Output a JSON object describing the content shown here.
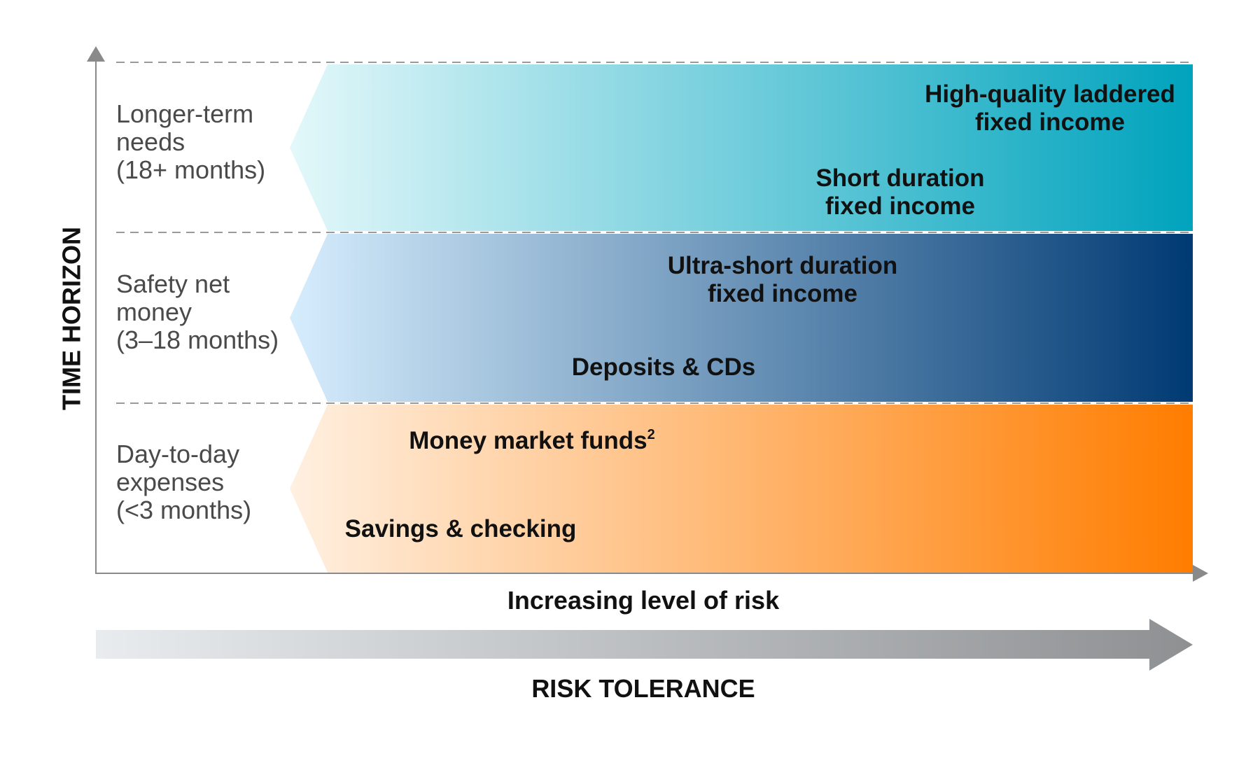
{
  "colors": {
    "top_band_start": "#e3f8fa",
    "top_band_end": "#00a3bd",
    "middle_band_start": "#d6edfd",
    "middle_band_end": "#003a73",
    "bottom_band_start": "#fff0e1",
    "bottom_band_end": "#ff7d00",
    "axis": "#8a8a8a",
    "grid_dash": "#9a9a9a",
    "risk_arrow_start": "#e8ecef",
    "risk_arrow_end": "#8e9092"
  },
  "y_axis": {
    "title": "TIME HORIZON"
  },
  "x_axis": {
    "title": "Increasing level of risk"
  },
  "risk_arrow": {
    "label": "RISK TOLERANCE"
  },
  "rows": [
    {
      "id": "longer-term",
      "label_lines": [
        "Longer-term",
        "needs",
        "(18+ months)"
      ],
      "products": [
        {
          "lines": [
            "High-quality laddered",
            "fixed income"
          ]
        },
        {
          "lines": [
            "Short duration",
            "fixed income"
          ]
        }
      ]
    },
    {
      "id": "safety-net",
      "label_lines": [
        "Safety net",
        "money",
        "(3–18 months)"
      ],
      "products": [
        {
          "lines": [
            "Ultra-short duration",
            "fixed income"
          ]
        },
        {
          "lines": [
            "Deposits & CDs"
          ]
        }
      ]
    },
    {
      "id": "day-to-day",
      "label_lines": [
        "Day-to-day",
        "expenses",
        "(<3 months)"
      ],
      "products": [
        {
          "lines": [
            "Money market funds"
          ],
          "superscript": "2"
        },
        {
          "lines": [
            "Savings & checking"
          ]
        }
      ]
    }
  ]
}
